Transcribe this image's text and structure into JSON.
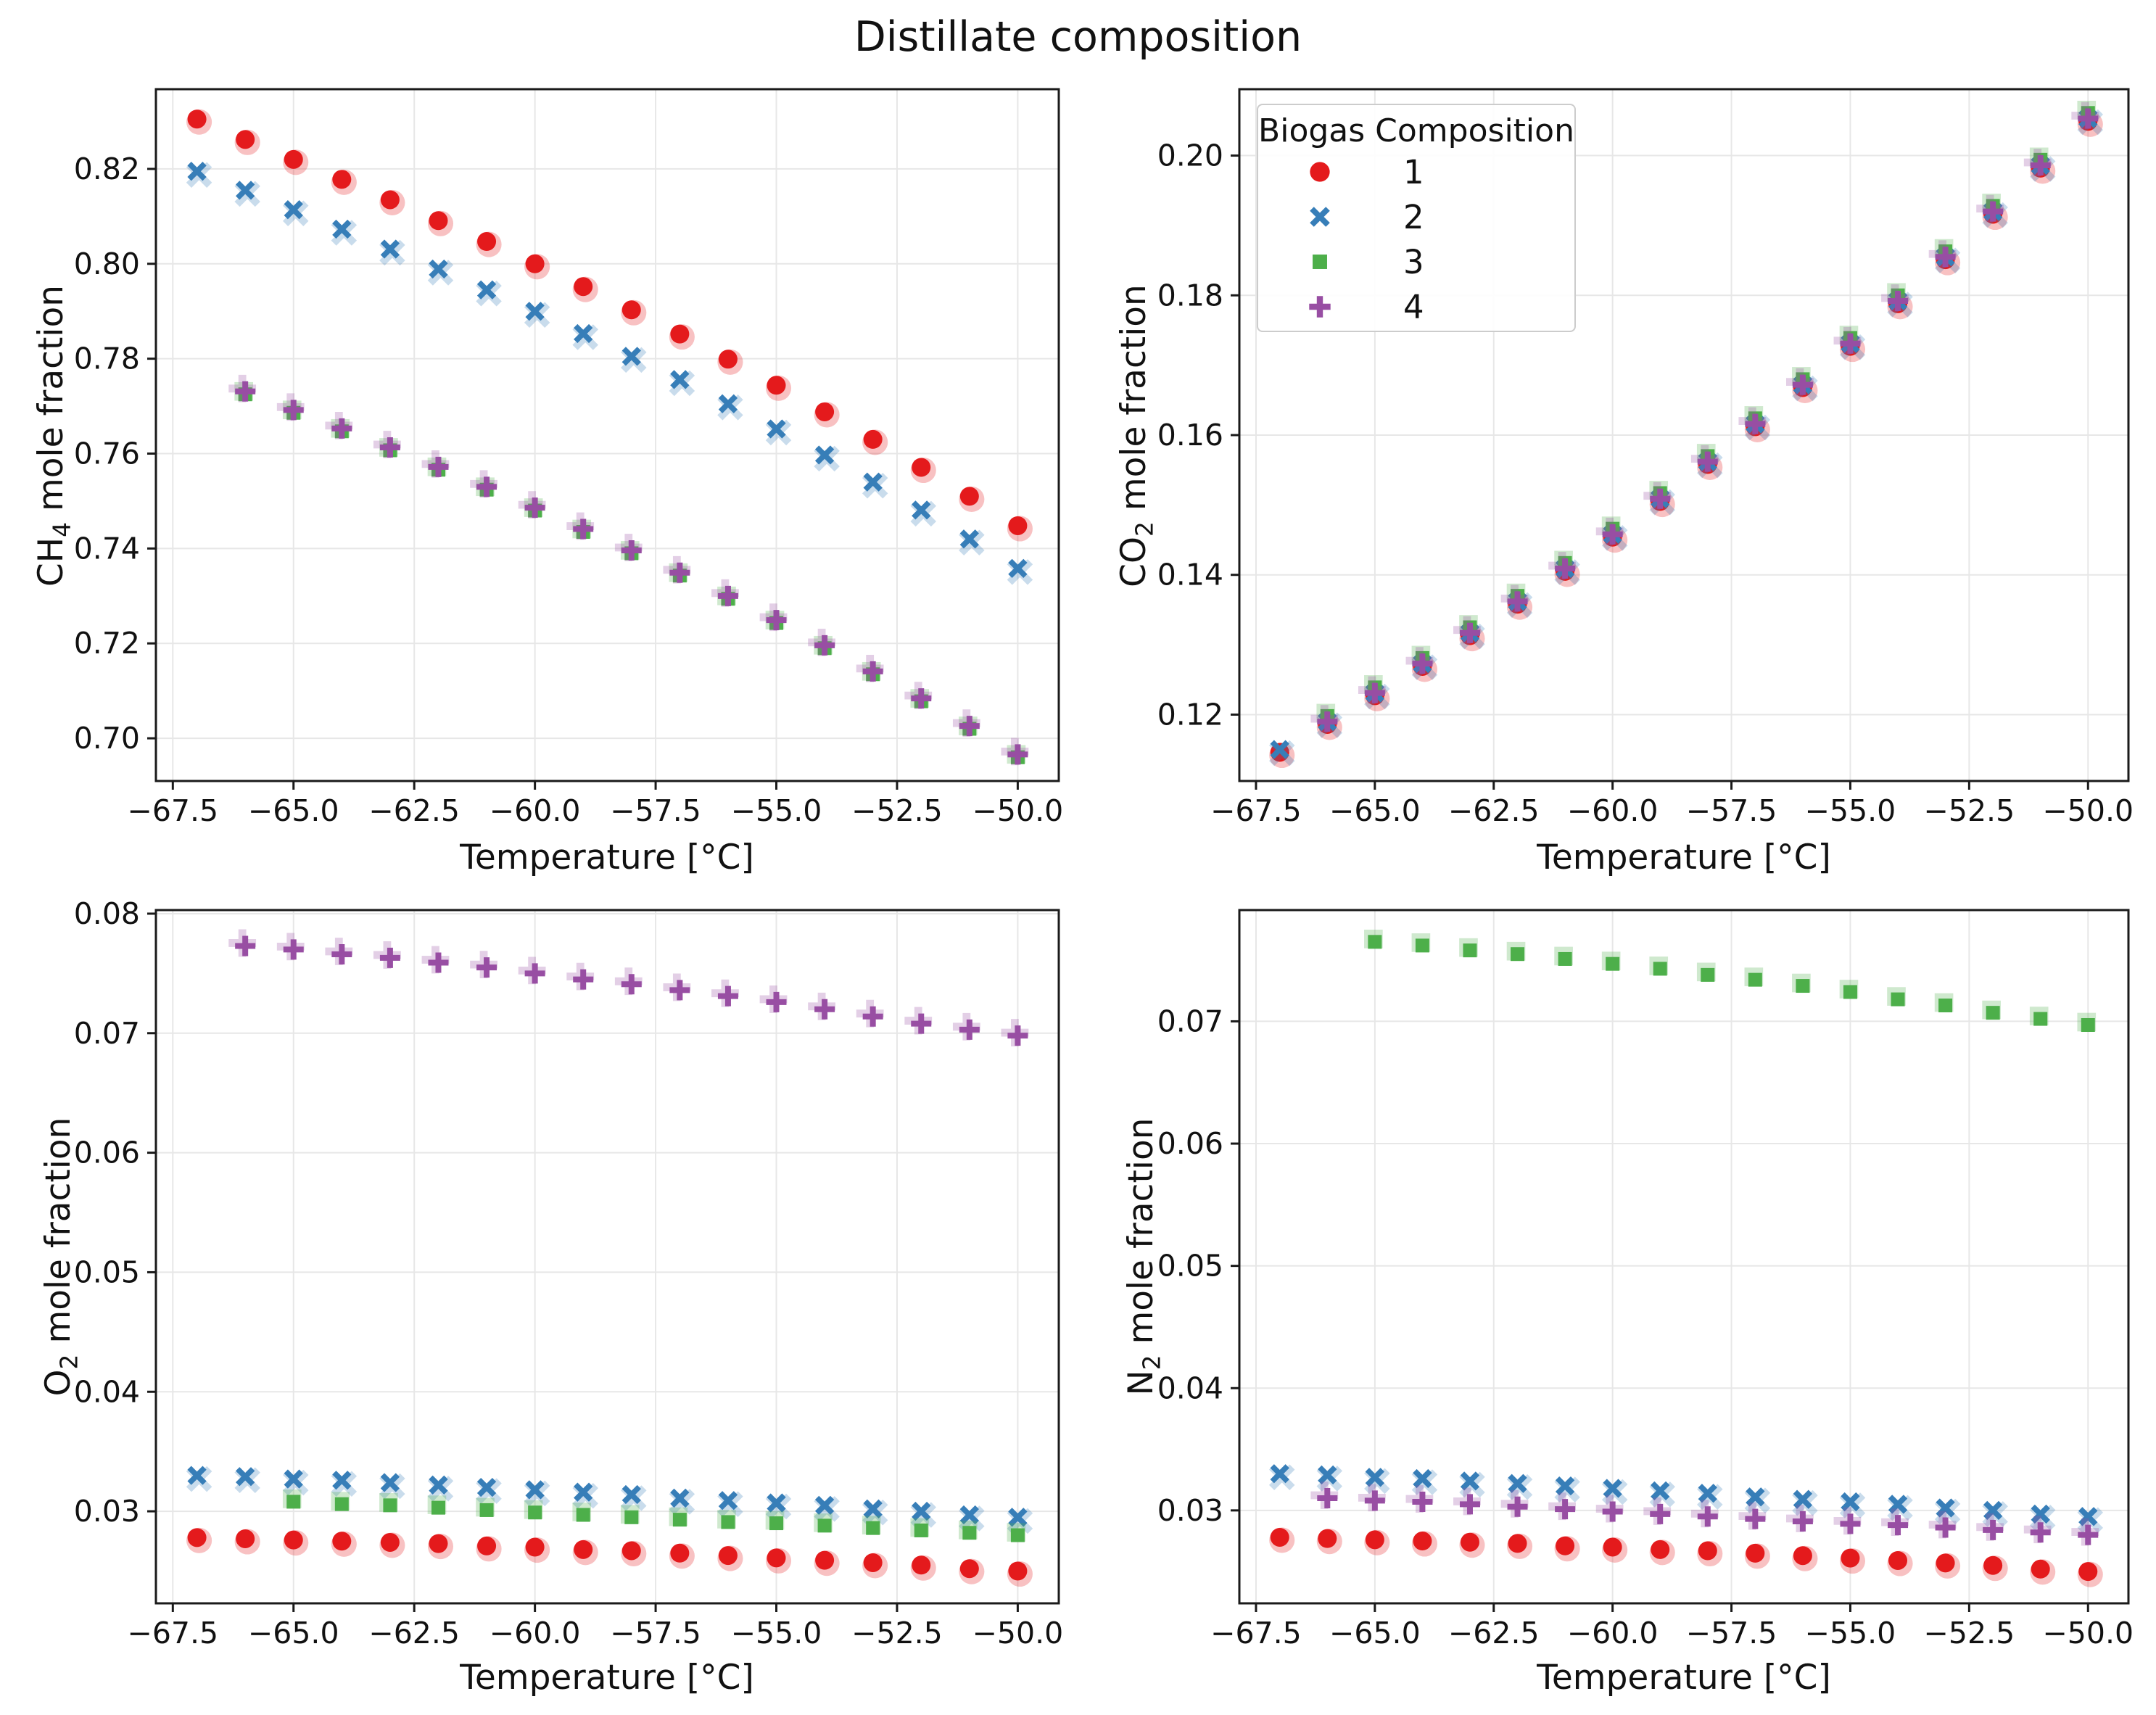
{
  "title": "Distillate composition",
  "xlabel": "Temperature [°C]",
  "legend": {
    "title": "Biogas Composition",
    "items": [
      {
        "label": "1",
        "marker": "circle",
        "color": "#e41a1c"
      },
      {
        "label": "2",
        "marker": "x",
        "color": "#377eb8"
      },
      {
        "label": "3",
        "marker": "square",
        "color": "#4daf4a"
      },
      {
        "label": "4",
        "marker": "plus",
        "color": "#984ea3"
      }
    ]
  },
  "palette": {
    "red": "#e41a1c",
    "blue": "#377eb8",
    "green": "#4daf4a",
    "purple": "#984ea3",
    "grid": "#e7e7e7",
    "spine": "#1a1a1a",
    "text": "#111111"
  },
  "chart_data": [
    {
      "type": "scatter",
      "key": "ch4",
      "ylabel": {
        "pre": "CH",
        "sub": "4",
        "post": " mole fraction"
      },
      "xlim": [
        -67.85,
        -49.15
      ],
      "ylim": [
        0.691,
        0.8368
      ],
      "xticks": [
        -67.5,
        -65.0,
        -62.5,
        -60.0,
        -57.5,
        -55.0,
        -52.5,
        -50.0
      ],
      "yticks": [
        0.7,
        0.72,
        0.74,
        0.76,
        0.78,
        0.8,
        0.82
      ],
      "series": [
        {
          "composition": "1",
          "marker": "circle",
          "color": "#e41a1c",
          "x": [
            -67,
            -66,
            -65,
            -64,
            -63,
            -62,
            -61,
            -60,
            -59,
            -58,
            -57,
            -56,
            -55,
            -54,
            -53,
            -52,
            -51,
            -50
          ],
          "y": [
            0.8305,
            0.8262,
            0.822,
            0.8178,
            0.8135,
            0.8091,
            0.8047,
            0.8,
            0.7952,
            0.7903,
            0.7852,
            0.7799,
            0.7744,
            0.7688,
            0.763,
            0.7571,
            0.751,
            0.7448
          ]
        },
        {
          "composition": "2",
          "marker": "x",
          "color": "#377eb8",
          "x": [
            -67,
            -66,
            -65,
            -64,
            -63,
            -62,
            -61,
            -60,
            -59,
            -58,
            -57,
            -56,
            -55,
            -54,
            -53,
            -52,
            -51,
            -50
          ],
          "y": [
            0.8195,
            0.8155,
            0.8114,
            0.8073,
            0.8031,
            0.7989,
            0.7945,
            0.79,
            0.7853,
            0.7805,
            0.7756,
            0.7705,
            0.7652,
            0.7597,
            0.754,
            0.7481,
            0.742,
            0.7358
          ]
        },
        {
          "composition": "3",
          "marker": "square",
          "color": "#4daf4a",
          "x": [
            -66,
            -65,
            -64,
            -63,
            -62,
            -61,
            -60,
            -59,
            -58,
            -57,
            -56,
            -55,
            -54,
            -53,
            -52,
            -51,
            -50
          ],
          "y": [
            0.7725,
            0.7686,
            0.7647,
            0.7607,
            0.7566,
            0.7524,
            0.748,
            0.7435,
            0.739,
            0.7343,
            0.7294,
            0.7243,
            0.719,
            0.7135,
            0.7078,
            0.702,
            0.696
          ]
        },
        {
          "composition": "4",
          "marker": "plus",
          "color": "#984ea3",
          "x": [
            -66,
            -65,
            -64,
            -63,
            -62,
            -61,
            -60,
            -59,
            -58,
            -57,
            -56,
            -55,
            -54,
            -53,
            -52,
            -51,
            -50
          ],
          "y": [
            0.7731,
            0.7692,
            0.7653,
            0.7613,
            0.7572,
            0.753,
            0.7486,
            0.7441,
            0.7396,
            0.7349,
            0.73,
            0.7249,
            0.7196,
            0.7141,
            0.7084,
            0.7026,
            0.6966
          ]
        }
      ]
    },
    {
      "type": "scatter",
      "key": "co2",
      "ylabel": {
        "pre": "CO",
        "sub": "2",
        "post": " mole fraction"
      },
      "xlim": [
        -67.85,
        -49.15
      ],
      "ylim": [
        0.1105,
        0.2095
      ],
      "xticks": [
        -67.5,
        -65.0,
        -62.5,
        -60.0,
        -57.5,
        -55.0,
        -52.5,
        -50.0
      ],
      "yticks": [
        0.12,
        0.14,
        0.16,
        0.18,
        0.2
      ],
      "series": [
        {
          "composition": "1",
          "marker": "circle",
          "color": "#e41a1c",
          "x": [
            -67,
            -66,
            -65,
            -64,
            -63,
            -62,
            -61,
            -60,
            -59,
            -58,
            -57,
            -56,
            -55,
            -54,
            -53,
            -52,
            -51,
            -50
          ],
          "y": [
            0.1146,
            0.1186,
            0.1227,
            0.1269,
            0.1313,
            0.1358,
            0.1405,
            0.1454,
            0.1505,
            0.1558,
            0.1612,
            0.1668,
            0.1727,
            0.1788,
            0.1851,
            0.1916,
            0.1982,
            0.2049
          ]
        },
        {
          "composition": "2",
          "marker": "x",
          "color": "#377eb8",
          "x": [
            -67,
            -66,
            -65,
            -64,
            -63,
            -62,
            -61,
            -60,
            -59,
            -58,
            -57,
            -56,
            -55,
            -54,
            -53,
            -52,
            -51,
            -50
          ],
          "y": [
            0.115,
            0.119,
            0.1231,
            0.1273,
            0.1317,
            0.1362,
            0.1409,
            0.1458,
            0.1509,
            0.1562,
            0.1616,
            0.1672,
            0.1731,
            0.1792,
            0.1855,
            0.192,
            0.1986,
            0.2053
          ]
        },
        {
          "composition": "3",
          "marker": "square",
          "color": "#4daf4a",
          "x": [
            -66,
            -65,
            -64,
            -63,
            -62,
            -61,
            -60,
            -59,
            -58,
            -57,
            -56,
            -55,
            -54,
            -53,
            -52,
            -51,
            -50
          ],
          "y": [
            0.1198,
            0.1239,
            0.1281,
            0.1325,
            0.137,
            0.1417,
            0.1466,
            0.1517,
            0.157,
            0.1624,
            0.168,
            0.1739,
            0.18,
            0.1863,
            0.1928,
            0.1994,
            0.2061
          ]
        },
        {
          "composition": "4",
          "marker": "plus",
          "color": "#984ea3",
          "x": [
            -66,
            -65,
            -64,
            -63,
            -62,
            -61,
            -60,
            -59,
            -58,
            -57,
            -56,
            -55,
            -54,
            -53,
            -52,
            -51,
            -50
          ],
          "y": [
            0.119,
            0.1231,
            0.1273,
            0.1317,
            0.1362,
            0.1409,
            0.1458,
            0.1509,
            0.1562,
            0.1616,
            0.1672,
            0.1731,
            0.1792,
            0.1855,
            0.192,
            0.1986,
            0.2053
          ]
        }
      ]
    },
    {
      "type": "scatter",
      "key": "o2",
      "ylabel": {
        "pre": "O",
        "sub": "2",
        "post": " mole fraction"
      },
      "xlim": [
        -67.85,
        -49.15
      ],
      "ylim": [
        0.0223,
        0.0803
      ],
      "xticks": [
        -67.5,
        -65.0,
        -62.5,
        -60.0,
        -57.5,
        -55.0,
        -52.5,
        -50.0
      ],
      "yticks": [
        0.03,
        0.04,
        0.05,
        0.06,
        0.07,
        0.08
      ],
      "series": [
        {
          "composition": "1",
          "marker": "circle",
          "color": "#e41a1c",
          "x": [
            -67,
            -66,
            -65,
            -64,
            -63,
            -62,
            -61,
            -60,
            -59,
            -58,
            -57,
            -56,
            -55,
            -54,
            -53,
            -52,
            -51,
            -50
          ],
          "y": [
            0.0278,
            0.0277,
            0.0276,
            0.0275,
            0.0274,
            0.0273,
            0.0271,
            0.027,
            0.0268,
            0.0267,
            0.0265,
            0.0263,
            0.0261,
            0.0259,
            0.0257,
            0.0255,
            0.0252,
            0.025
          ]
        },
        {
          "composition": "2",
          "marker": "x",
          "color": "#377eb8",
          "x": [
            -67,
            -66,
            -65,
            -64,
            -63,
            -62,
            -61,
            -60,
            -59,
            -58,
            -57,
            -56,
            -55,
            -54,
            -53,
            -52,
            -51,
            -50
          ],
          "y": [
            0.033,
            0.0329,
            0.0327,
            0.0326,
            0.0324,
            0.0322,
            0.032,
            0.0318,
            0.0316,
            0.0314,
            0.0311,
            0.0309,
            0.0307,
            0.0305,
            0.0302,
            0.03,
            0.0297,
            0.0295
          ]
        },
        {
          "composition": "3",
          "marker": "square",
          "color": "#4daf4a",
          "x": [
            -65,
            -64,
            -63,
            -62,
            -61,
            -60,
            -59,
            -58,
            -57,
            -56,
            -55,
            -54,
            -53,
            -52,
            -51,
            -50
          ],
          "y": [
            0.0308,
            0.0306,
            0.0305,
            0.0303,
            0.0301,
            0.0299,
            0.0297,
            0.0295,
            0.0293,
            0.0291,
            0.029,
            0.0288,
            0.0286,
            0.0284,
            0.0282,
            0.028
          ]
        },
        {
          "composition": "4",
          "marker": "plus",
          "color": "#984ea3",
          "x": [
            -66,
            -65,
            -64,
            -63,
            -62,
            -61,
            -60,
            -59,
            -58,
            -57,
            -56,
            -55,
            -54,
            -53,
            -52,
            -51,
            -50
          ],
          "y": [
            0.0773,
            0.077,
            0.0766,
            0.0763,
            0.0759,
            0.0755,
            0.075,
            0.0745,
            0.0741,
            0.0736,
            0.0731,
            0.0726,
            0.072,
            0.0714,
            0.0708,
            0.0703,
            0.0698
          ]
        }
      ]
    },
    {
      "type": "scatter",
      "key": "n2",
      "ylabel": {
        "pre": "N",
        "sub": "2",
        "post": " mole fraction"
      },
      "xlim": [
        -67.85,
        -49.15
      ],
      "ylim": [
        0.0224,
        0.0791
      ],
      "xticks": [
        -67.5,
        -65.0,
        -62.5,
        -60.0,
        -57.5,
        -55.0,
        -52.5,
        -50.0
      ],
      "yticks": [
        0.03,
        0.04,
        0.05,
        0.06,
        0.07
      ],
      "series": [
        {
          "composition": "1",
          "marker": "circle",
          "color": "#e41a1c",
          "x": [
            -67,
            -66,
            -65,
            -64,
            -63,
            -62,
            -61,
            -60,
            -59,
            -58,
            -57,
            -56,
            -55,
            -54,
            -53,
            -52,
            -51,
            -50
          ],
          "y": [
            0.0278,
            0.0277,
            0.0276,
            0.0275,
            0.0274,
            0.0273,
            0.0271,
            0.027,
            0.0268,
            0.0267,
            0.0265,
            0.0263,
            0.0261,
            0.0259,
            0.0257,
            0.0255,
            0.0252,
            0.025
          ]
        },
        {
          "composition": "2",
          "marker": "x",
          "color": "#377eb8",
          "x": [
            -67,
            -66,
            -65,
            -64,
            -63,
            -62,
            -61,
            -60,
            -59,
            -58,
            -57,
            -56,
            -55,
            -54,
            -53,
            -52,
            -51,
            -50
          ],
          "y": [
            0.033,
            0.0329,
            0.0327,
            0.0326,
            0.0324,
            0.0322,
            0.032,
            0.0318,
            0.0316,
            0.0314,
            0.0311,
            0.0309,
            0.0307,
            0.0305,
            0.0302,
            0.03,
            0.0297,
            0.0295
          ]
        },
        {
          "composition": "3",
          "marker": "square",
          "color": "#4daf4a",
          "x": [
            -65,
            -64,
            -63,
            -62,
            -61,
            -60,
            -59,
            -58,
            -57,
            -56,
            -55,
            -54,
            -53,
            -52,
            -51,
            -50
          ],
          "y": [
            0.0765,
            0.0762,
            0.0758,
            0.0755,
            0.0751,
            0.0747,
            0.0743,
            0.0738,
            0.0734,
            0.0729,
            0.0724,
            0.0718,
            0.0713,
            0.0707,
            0.0702,
            0.0697
          ]
        },
        {
          "composition": "4",
          "marker": "plus",
          "color": "#984ea3",
          "x": [
            -66,
            -65,
            -64,
            -63,
            -62,
            -61,
            -60,
            -59,
            -58,
            -57,
            -56,
            -55,
            -54,
            -53,
            -52,
            -51,
            -50
          ],
          "y": [
            0.031,
            0.0308,
            0.0307,
            0.0305,
            0.0303,
            0.0301,
            0.0299,
            0.0297,
            0.0295,
            0.0293,
            0.0291,
            0.0289,
            0.0288,
            0.0286,
            0.0284,
            0.0282,
            0.028
          ]
        }
      ]
    }
  ]
}
